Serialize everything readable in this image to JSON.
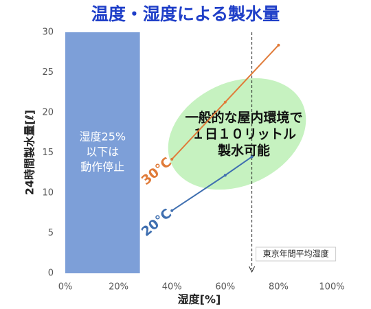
{
  "chart_data": {
    "type": "line",
    "title": "温度・湿度による製水量",
    "x_label": "湿度[%]",
    "y_label": "24時間製水量[ℓ]",
    "xlim": [
      0,
      100
    ],
    "ylim": [
      0,
      30
    ],
    "xticks": [
      {
        "value": 0,
        "label": "0%"
      },
      {
        "value": 20,
        "label": "20%"
      },
      {
        "value": 40,
        "label": "40%"
      },
      {
        "value": 60,
        "label": "60%"
      },
      {
        "value": 80,
        "label": "80%"
      },
      {
        "value": 100,
        "label": "100%"
      }
    ],
    "yticks": [
      0,
      5,
      10,
      15,
      20,
      25,
      30
    ],
    "grid": false,
    "series": [
      {
        "name": "30°C",
        "color": "#e07b39",
        "x": [
          40,
          60,
          80
        ],
        "values": [
          14.2,
          21.3,
          28.4
        ]
      },
      {
        "name": "20°C",
        "color": "#3f6fb0",
        "x": [
          40,
          60,
          70
        ],
        "values": [
          7.8,
          12.2,
          14.5
        ]
      }
    ],
    "shaded_region": {
      "x": [
        0,
        28
      ],
      "color": "#7d9fd8",
      "label": [
        "湿度25%",
        "以下は",
        "動作停止"
      ]
    },
    "reference_line": {
      "x": 70,
      "label": "東京年間平均湿度"
    },
    "annotation": [
      "一般的な屋内環境で",
      "１日１０リットル",
      "製水可能"
    ]
  }
}
